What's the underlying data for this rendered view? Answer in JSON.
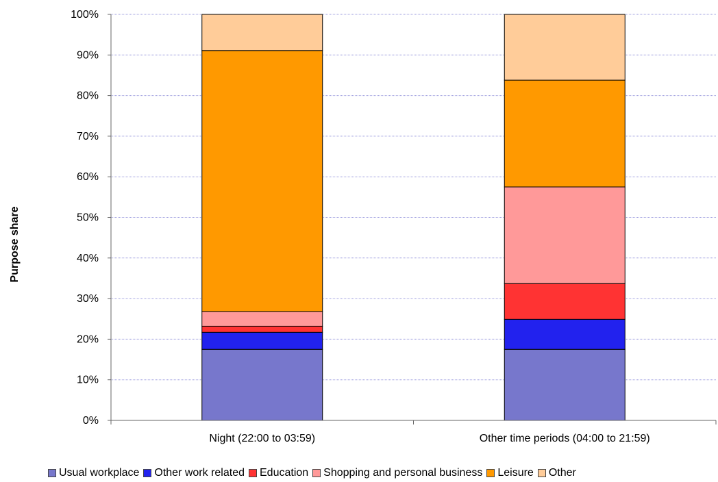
{
  "chart_data": {
    "type": "bar",
    "stacked": true,
    "ylabel": "Purpose share",
    "ylim": [
      0,
      100
    ],
    "yticks": [
      "0%",
      "10%",
      "20%",
      "30%",
      "40%",
      "50%",
      "60%",
      "70%",
      "80%",
      "90%",
      "100%"
    ],
    "grid": true,
    "legend_position": "bottom",
    "categories": [
      "Night (22:00 to 03:59)",
      "Other time periods (04:00 to 21:59)"
    ],
    "series": [
      {
        "name": "Usual workplace",
        "color": "#7777cc",
        "values": [
          17.5,
          17.5
        ]
      },
      {
        "name": "Other work related",
        "color": "#2222ee",
        "values": [
          4.2,
          7.4
        ]
      },
      {
        "name": "Education",
        "color": "#ff3333",
        "values": [
          1.5,
          8.8
        ]
      },
      {
        "name": "Shopping and personal business",
        "color": "#ff9999",
        "values": [
          3.6,
          23.8
        ]
      },
      {
        "name": "Leisure",
        "color": "#ff9900",
        "values": [
          64.3,
          26.3
        ]
      },
      {
        "name": "Other",
        "color": "#ffcc99",
        "values": [
          8.9,
          16.2
        ]
      }
    ]
  }
}
